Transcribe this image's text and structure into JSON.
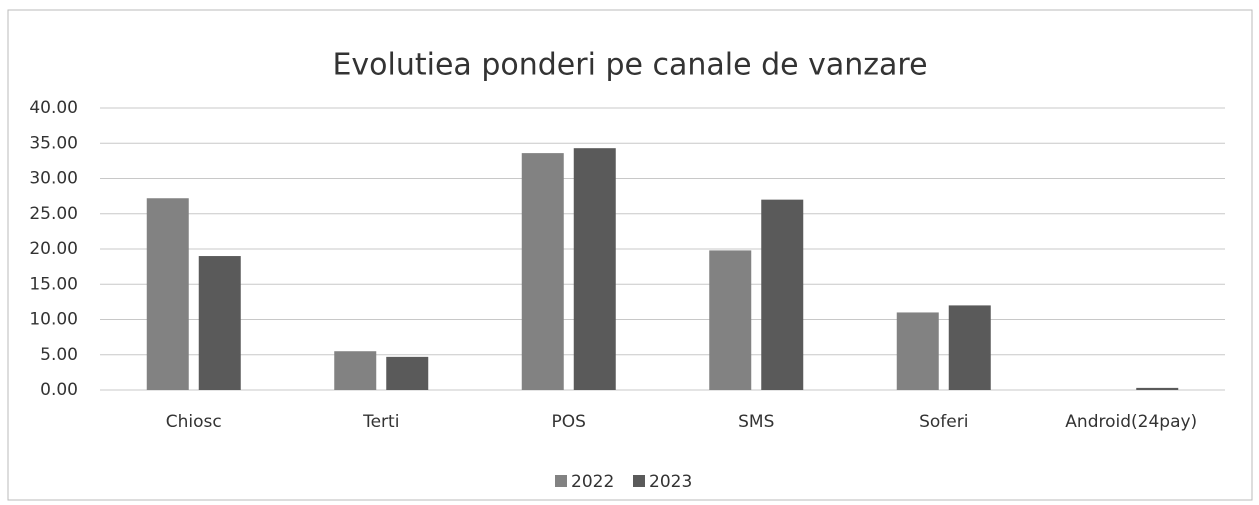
{
  "chart_data": {
    "type": "bar",
    "title": "Evolutiea ponderi pe canale de vanzare",
    "categories": [
      "Chiosc",
      "Terti",
      "POS",
      "SMS",
      "Soferi",
      "Android(24pay)"
    ],
    "series": [
      {
        "name": "2022",
        "color": "#828282",
        "values": [
          27.2,
          5.5,
          33.6,
          19.8,
          11.0,
          0
        ]
      },
      {
        "name": "2023",
        "color": "#5a5a5a",
        "values": [
          19.0,
          4.7,
          34.3,
          27.0,
          12.0,
          0.3
        ]
      }
    ],
    "ylim": [
      0,
      40
    ],
    "yticks": [
      {
        "value": 0,
        "label": "0.00"
      },
      {
        "value": 5,
        "label": "5.00"
      },
      {
        "value": 10,
        "label": "10.00"
      },
      {
        "value": 15,
        "label": "15.00"
      },
      {
        "value": 20,
        "label": "20.00"
      },
      {
        "value": 25,
        "label": "25.00"
      },
      {
        "value": 30,
        "label": "30.00"
      },
      {
        "value": 35,
        "label": "35.00"
      },
      {
        "value": 40,
        "label": "40.00"
      }
    ],
    "grid": true,
    "legend": "bottom"
  }
}
